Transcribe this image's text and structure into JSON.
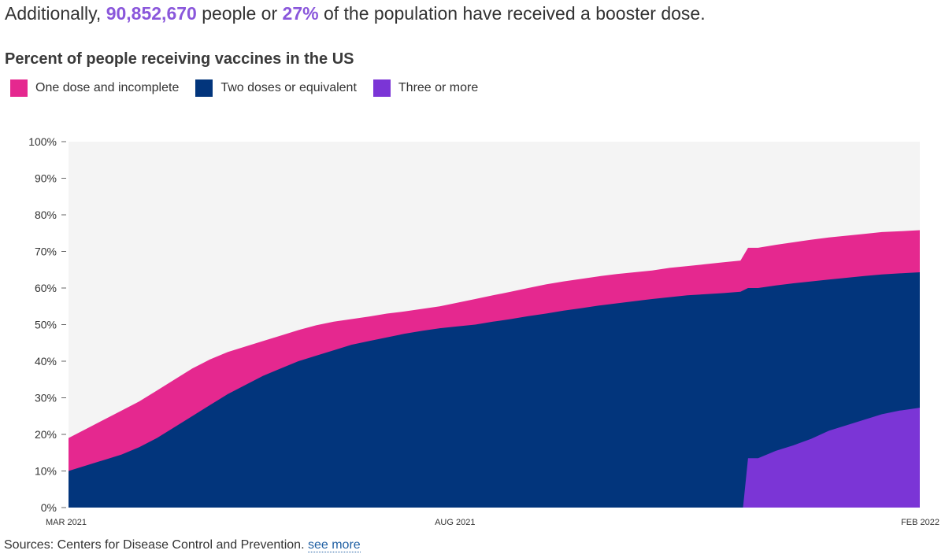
{
  "intro": {
    "prefix": "Additionally,",
    "count": "90,852,670",
    "middle": "people or",
    "percent": "27%",
    "suffix": "of the population have received a booster dose."
  },
  "sources": {
    "text": "Sources: Centers for Disease Control and Prevention.",
    "link": "see more"
  },
  "colors": {
    "highlight": "#8a57db",
    "one_dose": "#e5288f",
    "two_doses": "#02357c",
    "three_or_more": "#7b35d6",
    "plot_background": "#f4f4f4"
  },
  "chart_data": {
    "type": "area",
    "title": "Percent of people receiving vaccines in the US",
    "legend": [
      "One dose and incomplete",
      "Two doses or equivalent",
      "Three or more"
    ],
    "legend_position": "top-left",
    "y_ticks": [
      "0%",
      "10%",
      "20%",
      "30%",
      "40%",
      "50%",
      "60%",
      "70%",
      "80%",
      "90%",
      "100%"
    ],
    "ylim": [
      0,
      100
    ],
    "xlim": [
      "2021-03-01",
      "2022-02-01"
    ],
    "x_ticks": [
      {
        "date": "2021-03-01",
        "label": "MAR 2021"
      },
      {
        "date": "2021-08-01",
        "label": "AUG 2021"
      },
      {
        "date": "2022-02-01",
        "label": "FEB 2022"
      }
    ],
    "grid": false,
    "series": [
      {
        "name": "One dose and incomplete",
        "description": "top of pink band = percent with at least one dose",
        "points": [
          [
            "2021-03-01",
            19
          ],
          [
            "2021-03-08",
            21.5
          ],
          [
            "2021-03-15",
            24
          ],
          [
            "2021-03-22",
            26.5
          ],
          [
            "2021-03-29",
            29
          ],
          [
            "2021-04-05",
            32
          ],
          [
            "2021-04-12",
            35
          ],
          [
            "2021-04-19",
            38
          ],
          [
            "2021-04-26",
            40.5
          ],
          [
            "2021-05-03",
            42.5
          ],
          [
            "2021-05-10",
            44
          ],
          [
            "2021-05-17",
            45.5
          ],
          [
            "2021-05-24",
            47
          ],
          [
            "2021-05-31",
            48.5
          ],
          [
            "2021-06-07",
            49.8
          ],
          [
            "2021-06-14",
            50.8
          ],
          [
            "2021-06-21",
            51.5
          ],
          [
            "2021-06-28",
            52.2
          ],
          [
            "2021-07-05",
            53
          ],
          [
            "2021-07-12",
            53.6
          ],
          [
            "2021-07-19",
            54.3
          ],
          [
            "2021-07-26",
            55
          ],
          [
            "2021-08-02",
            56
          ],
          [
            "2021-08-09",
            57
          ],
          [
            "2021-08-16",
            58
          ],
          [
            "2021-08-23",
            59
          ],
          [
            "2021-08-30",
            60
          ],
          [
            "2021-09-06",
            61
          ],
          [
            "2021-09-13",
            61.8
          ],
          [
            "2021-09-20",
            62.5
          ],
          [
            "2021-09-27",
            63.2
          ],
          [
            "2021-10-04",
            63.8
          ],
          [
            "2021-10-11",
            64.3
          ],
          [
            "2021-10-18",
            64.8
          ],
          [
            "2021-10-25",
            65.5
          ],
          [
            "2021-11-01",
            66
          ],
          [
            "2021-11-08",
            66.5
          ],
          [
            "2021-11-15",
            67
          ],
          [
            "2021-11-22",
            67.5
          ],
          [
            "2021-11-25",
            71
          ],
          [
            "2021-11-29",
            71
          ],
          [
            "2021-12-06",
            71.8
          ],
          [
            "2021-12-13",
            72.5
          ],
          [
            "2021-12-20",
            73.2
          ],
          [
            "2021-12-27",
            73.8
          ],
          [
            "2022-01-03",
            74.3
          ],
          [
            "2022-01-10",
            74.8
          ],
          [
            "2022-01-17",
            75.3
          ],
          [
            "2022-01-24",
            75.5
          ],
          [
            "2022-02-01",
            75.8
          ]
        ]
      },
      {
        "name": "Two doses or equivalent",
        "description": "top of navy band = percent with two doses or equivalent",
        "points": [
          [
            "2021-03-01",
            10
          ],
          [
            "2021-03-08",
            11.5
          ],
          [
            "2021-03-15",
            13
          ],
          [
            "2021-03-22",
            14.5
          ],
          [
            "2021-03-29",
            16.5
          ],
          [
            "2021-04-05",
            19
          ],
          [
            "2021-04-12",
            22
          ],
          [
            "2021-04-19",
            25
          ],
          [
            "2021-04-26",
            28
          ],
          [
            "2021-05-03",
            31
          ],
          [
            "2021-05-10",
            33.5
          ],
          [
            "2021-05-17",
            36
          ],
          [
            "2021-05-24",
            38
          ],
          [
            "2021-05-31",
            40
          ],
          [
            "2021-06-07",
            41.5
          ],
          [
            "2021-06-14",
            43
          ],
          [
            "2021-06-21",
            44.5
          ],
          [
            "2021-06-28",
            45.5
          ],
          [
            "2021-07-05",
            46.5
          ],
          [
            "2021-07-12",
            47.5
          ],
          [
            "2021-07-19",
            48.3
          ],
          [
            "2021-07-26",
            49
          ],
          [
            "2021-08-02",
            49.5
          ],
          [
            "2021-08-09",
            50
          ],
          [
            "2021-08-16",
            50.8
          ],
          [
            "2021-08-23",
            51.5
          ],
          [
            "2021-08-30",
            52.3
          ],
          [
            "2021-09-06",
            53
          ],
          [
            "2021-09-13",
            53.8
          ],
          [
            "2021-09-20",
            54.5
          ],
          [
            "2021-09-27",
            55.2
          ],
          [
            "2021-10-04",
            55.8
          ],
          [
            "2021-10-11",
            56.4
          ],
          [
            "2021-10-18",
            57
          ],
          [
            "2021-10-25",
            57.5
          ],
          [
            "2021-11-01",
            58
          ],
          [
            "2021-11-08",
            58.3
          ],
          [
            "2021-11-15",
            58.6
          ],
          [
            "2021-11-22",
            59
          ],
          [
            "2021-11-25",
            60
          ],
          [
            "2021-11-29",
            60
          ],
          [
            "2021-12-06",
            60.7
          ],
          [
            "2021-12-13",
            61.3
          ],
          [
            "2021-12-20",
            61.8
          ],
          [
            "2021-12-27",
            62.3
          ],
          [
            "2022-01-03",
            62.8
          ],
          [
            "2022-01-10",
            63.3
          ],
          [
            "2022-01-17",
            63.7
          ],
          [
            "2022-01-24",
            64
          ],
          [
            "2022-02-01",
            64.3
          ]
        ]
      },
      {
        "name": "Three or more",
        "description": "height of purple band = percent with three or more doses",
        "points": [
          [
            "2021-11-23",
            0
          ],
          [
            "2021-11-25",
            13.5
          ],
          [
            "2021-11-29",
            13.5
          ],
          [
            "2021-12-06",
            15.5
          ],
          [
            "2021-12-13",
            17
          ],
          [
            "2021-12-20",
            18.8
          ],
          [
            "2021-12-27",
            21
          ],
          [
            "2022-01-03",
            22.5
          ],
          [
            "2022-01-10",
            24
          ],
          [
            "2022-01-17",
            25.5
          ],
          [
            "2022-01-24",
            26.5
          ],
          [
            "2022-02-01",
            27.3
          ]
        ]
      }
    ]
  }
}
